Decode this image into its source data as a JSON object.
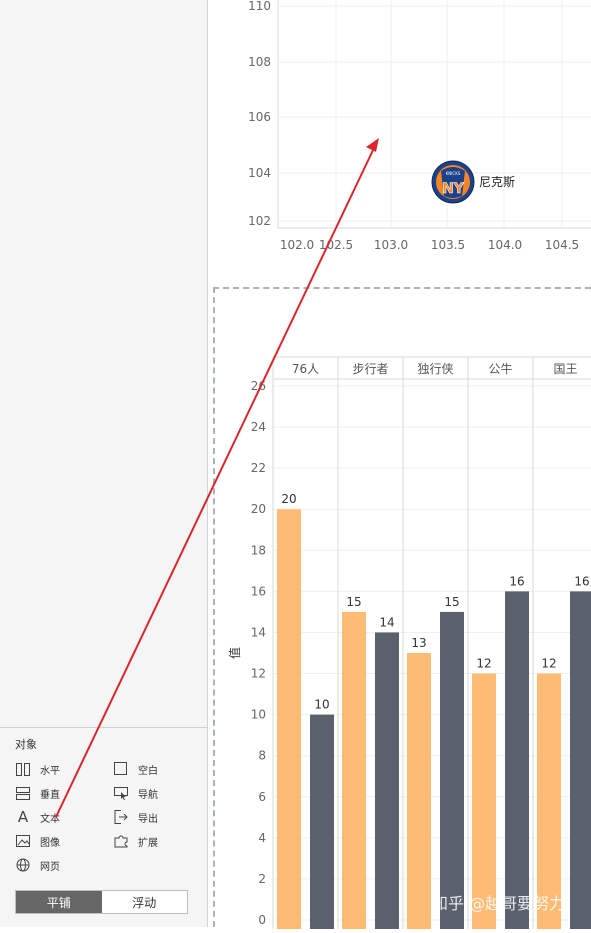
{
  "left_panel": {
    "objects_title": "对象",
    "objects": [
      {
        "label": "水平",
        "icon": "horizontal-layout-icon"
      },
      {
        "label": "空白",
        "icon": "blank-icon"
      },
      {
        "label": "垂直",
        "icon": "vertical-layout-icon"
      },
      {
        "label": "导航",
        "icon": "navigation-icon"
      },
      {
        "label": "文本",
        "icon": "text-icon"
      },
      {
        "label": "导出",
        "icon": "export-icon"
      },
      {
        "label": "图像",
        "icon": "image-icon"
      },
      {
        "label": "扩展",
        "icon": "extension-icon"
      },
      {
        "label": "网页",
        "icon": "webpage-icon"
      }
    ],
    "mode_tiled": "平铺",
    "mode_floating": "浮动"
  },
  "scatter_chart": {
    "y_ticks": [
      "110",
      "108",
      "106",
      "104",
      "102"
    ],
    "x_ticks": [
      "102.0",
      "102.5",
      "103.0",
      "103.5",
      "104.0",
      "104.5"
    ],
    "point_label": "尼克斯",
    "logo_text": "NY",
    "logo_subtext": "KNICKS"
  },
  "chart_data": {
    "type": "bar",
    "categories": [
      "76人",
      "步行者",
      "独行侠",
      "公牛",
      "国王"
    ],
    "series": [
      {
        "values": [
          20,
          15,
          13,
          12,
          12
        ]
      },
      {
        "values": [
          10,
          14,
          15,
          16,
          16
        ]
      }
    ],
    "ylabel": "值",
    "ylim": [
      0,
      26
    ],
    "y_ticks": [
      "0",
      "2",
      "4",
      "6",
      "8",
      "10",
      "12",
      "14",
      "16",
      "18",
      "20",
      "22",
      "24",
      "26"
    ],
    "colors": [
      "#fdbb74",
      "#5a606c"
    ],
    "grid": true
  },
  "watermark": "知乎 @越哥要努力",
  "colors": {
    "accent_arrow": "#d9262c"
  }
}
